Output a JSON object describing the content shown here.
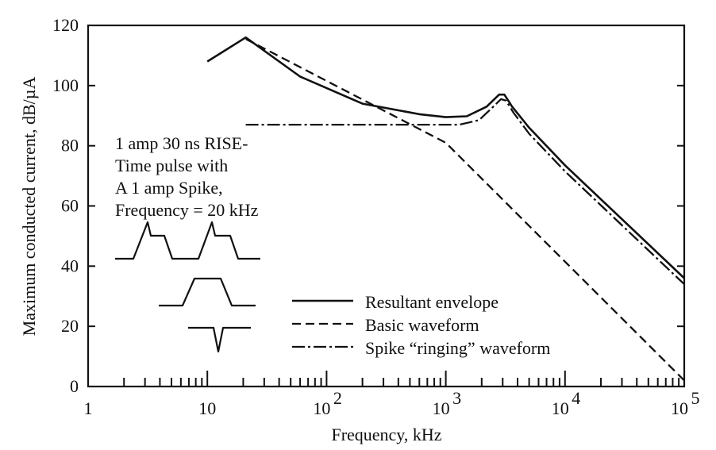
{
  "chart_data": {
    "type": "line",
    "xlabel": "Frequency, kHz",
    "ylabel": "Maximum conducted current, dB/µA",
    "xscale": "log",
    "xlim": [
      1,
      100000
    ],
    "ylim": [
      0,
      120
    ],
    "grid": false,
    "legend_placement": "bottom-center",
    "x_tick_labels": [
      {
        "x": 1,
        "base": "1",
        "exp": ""
      },
      {
        "x": 10,
        "base": "10",
        "exp": ""
      },
      {
        "x": 100,
        "base": "10",
        "exp": "2"
      },
      {
        "x": 1000,
        "base": "10",
        "exp": "3"
      },
      {
        "x": 10000,
        "base": "10",
        "exp": "4"
      },
      {
        "x": 100000,
        "base": "10",
        "exp": "5"
      }
    ],
    "y_ticks": [
      0,
      20,
      40,
      60,
      80,
      100,
      120
    ],
    "series": [
      {
        "name": "Resultant envelope",
        "style": "solid",
        "points": [
          [
            10,
            108
          ],
          [
            21,
            116
          ],
          [
            60,
            103
          ],
          [
            200,
            94
          ],
          [
            600,
            90.5
          ],
          [
            1000,
            89.5
          ],
          [
            1500,
            89.8
          ],
          [
            2200,
            93
          ],
          [
            2800,
            97
          ],
          [
            3100,
            97
          ],
          [
            3600,
            93
          ],
          [
            5000,
            86
          ],
          [
            10000,
            73.5
          ],
          [
            100000,
            36
          ]
        ]
      },
      {
        "name": "Basic waveform",
        "style": "dashed",
        "points": [
          [
            21,
            115.5
          ],
          [
            1000,
            81
          ],
          [
            100000,
            2
          ]
        ]
      },
      {
        "name": "Spike “ringing” waveform",
        "style": "dashdot",
        "points": [
          [
            21,
            87
          ],
          [
            1300,
            87
          ],
          [
            1900,
            88.5
          ],
          [
            2500,
            93
          ],
          [
            2900,
            95.5
          ],
          [
            3200,
            95
          ],
          [
            3700,
            91
          ],
          [
            5000,
            84
          ],
          [
            10000,
            71.5
          ],
          [
            100000,
            34
          ]
        ]
      }
    ],
    "annotation_lines": [
      "1 amp 30 ns RISE-",
      "Time pulse with",
      "A 1 amp Spike,",
      "Frequency = 20 kHz"
    ]
  }
}
